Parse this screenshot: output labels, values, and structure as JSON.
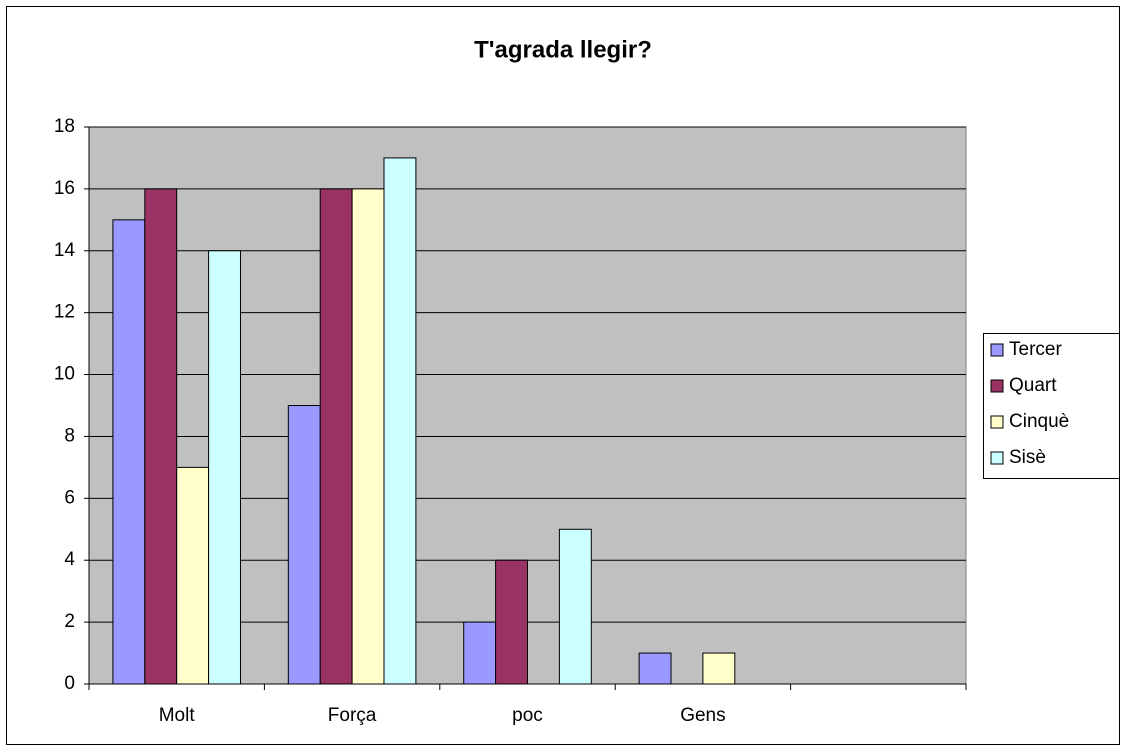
{
  "chart_data": {
    "type": "bar",
    "title": "T'agrada llegir?",
    "categories": [
      "Molt",
      "Força",
      "poc",
      "Gens",
      null
    ],
    "series": [
      {
        "name": "Tercer",
        "color": "#9999ff",
        "values": [
          15,
          9,
          2,
          1,
          null
        ]
      },
      {
        "name": "Quart",
        "color": "#993366",
        "values": [
          16,
          16,
          4,
          0,
          null
        ]
      },
      {
        "name": "Cinquè",
        "color": "#ffffcc",
        "values": [
          7,
          16,
          0,
          1,
          null
        ]
      },
      {
        "name": "Sisè",
        "color": "#ccffff",
        "values": [
          14,
          17,
          5,
          0,
          null
        ]
      }
    ],
    "ylim": [
      0,
      18
    ],
    "yticks": [
      0,
      2,
      4,
      6,
      8,
      10,
      12,
      14,
      16,
      18
    ],
    "grid": true,
    "legend": "right"
  }
}
